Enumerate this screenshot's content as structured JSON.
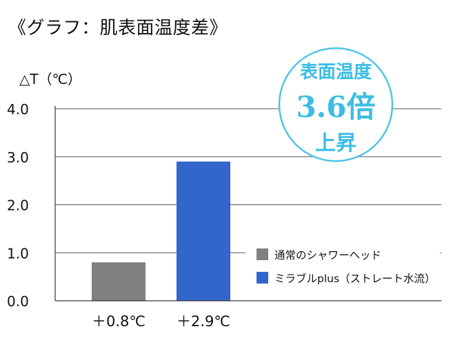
{
  "page": {
    "title": "《グラフ：肌表面温度差》"
  },
  "callout": {
    "line1": "表面温度",
    "line2": "3.6倍",
    "line3": "上昇"
  },
  "chart_data": {
    "type": "bar",
    "title": "",
    "ylabel": "△T（℃）",
    "xlabel": "",
    "ylim": [
      0,
      4.0
    ],
    "yticks": [
      "0.0",
      "1.0",
      "2.0",
      "3.0",
      "4.0"
    ],
    "grid": true,
    "legend_position": "right",
    "series": [
      {
        "name": "通常のシャワーヘッド",
        "color": "#808080",
        "value": 0.8,
        "label": "＋0.8℃"
      },
      {
        "name": "ミラブルplus（ストレート水流）",
        "color": "#3366cc",
        "value": 2.9,
        "label": "＋2.9℃"
      }
    ]
  },
  "colors": {
    "callout_border": "#4fc3e8",
    "callout_text": "#3cbde3",
    "axis": "#333333",
    "grid": "#555555"
  }
}
